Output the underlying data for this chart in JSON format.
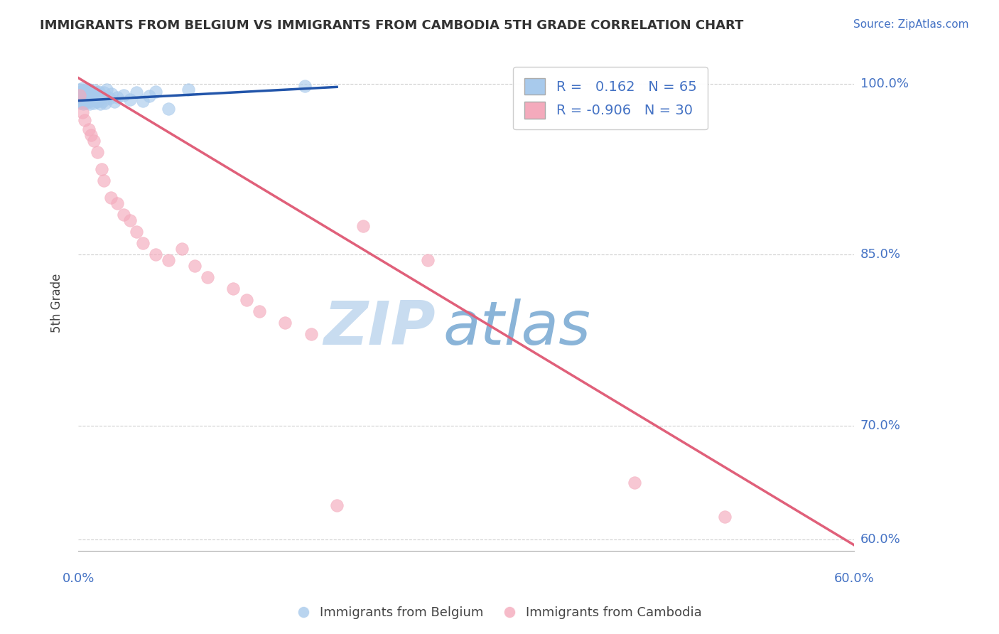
{
  "title": "IMMIGRANTS FROM BELGIUM VS IMMIGRANTS FROM CAMBODIA 5TH GRADE CORRELATION CHART",
  "source": "Source: ZipAtlas.com",
  "ylabel": "5th Grade",
  "xlim": [
    0.0,
    60.0
  ],
  "ylim": [
    59.0,
    102.5
  ],
  "yticks": [
    60.0,
    70.0,
    85.0,
    100.0
  ],
  "ytick_labels": [
    "60.0%",
    "70.0%",
    "85.0%",
    "100.0%"
  ],
  "legend_blue_r": "0.162",
  "legend_blue_n": "65",
  "legend_pink_r": "-0.906",
  "legend_pink_n": "30",
  "blue_color": "#A8CAEC",
  "pink_color": "#F4AABC",
  "blue_line_color": "#2255AA",
  "pink_line_color": "#E0607A",
  "title_color": "#333333",
  "axis_label_color": "#444444",
  "tick_color": "#4472C4",
  "watermark_zip_color": "#C8DCF0",
  "watermark_atlas_color": "#8AB4D8",
  "background_color": "#FFFFFF",
  "grid_color": "#BBBBBB",
  "blue_scatter_x": [
    0.05,
    0.08,
    0.1,
    0.12,
    0.15,
    0.18,
    0.2,
    0.22,
    0.25,
    0.28,
    0.3,
    0.32,
    0.35,
    0.38,
    0.4,
    0.42,
    0.45,
    0.48,
    0.5,
    0.52,
    0.55,
    0.58,
    0.6,
    0.62,
    0.65,
    0.68,
    0.7,
    0.75,
    0.8,
    0.85,
    0.9,
    0.95,
    1.0,
    1.05,
    1.1,
    1.15,
    1.2,
    1.25,
    1.3,
    1.35,
    1.4,
    1.45,
    1.5,
    1.55,
    1.6,
    1.65,
    1.7,
    1.8,
    1.9,
    2.0,
    2.1,
    2.2,
    2.4,
    2.6,
    2.8,
    3.0,
    3.5,
    4.0,
    4.5,
    5.0,
    5.5,
    6.0,
    7.0,
    8.5,
    17.5
  ],
  "blue_scatter_y": [
    99.2,
    98.8,
    99.5,
    98.5,
    99.0,
    98.3,
    99.1,
    98.7,
    99.3,
    98.4,
    99.6,
    98.6,
    99.2,
    98.2,
    99.4,
    98.9,
    99.0,
    98.5,
    99.1,
    98.3,
    98.8,
    99.4,
    98.7,
    99.3,
    98.5,
    99.2,
    98.6,
    99.0,
    98.4,
    99.5,
    98.2,
    99.1,
    98.8,
    99.3,
    98.6,
    99.0,
    98.3,
    99.4,
    98.7,
    99.2,
    98.5,
    99.1,
    98.4,
    98.9,
    99.3,
    98.6,
    98.2,
    99.0,
    98.5,
    99.2,
    98.3,
    99.5,
    98.7,
    99.1,
    98.4,
    98.8,
    99.0,
    98.6,
    99.2,
    98.5,
    98.9,
    99.3,
    97.8,
    99.5,
    99.8
  ],
  "pink_scatter_x": [
    0.1,
    0.3,
    0.5,
    0.8,
    1.0,
    1.2,
    1.5,
    1.8,
    2.0,
    2.5,
    3.0,
    3.5,
    4.0,
    4.5,
    5.0,
    6.0,
    7.0,
    8.0,
    9.0,
    10.0,
    12.0,
    13.0,
    14.0,
    16.0,
    18.0,
    20.0,
    22.0,
    27.0,
    43.0,
    50.0
  ],
  "pink_scatter_y": [
    99.0,
    97.5,
    96.8,
    96.0,
    95.5,
    95.0,
    94.0,
    92.5,
    91.5,
    90.0,
    89.5,
    88.5,
    88.0,
    87.0,
    86.0,
    85.0,
    84.5,
    85.5,
    84.0,
    83.0,
    82.0,
    81.0,
    80.0,
    79.0,
    78.0,
    63.0,
    87.5,
    84.5,
    65.0,
    62.0
  ],
  "blue_trend_x": [
    0.0,
    20.0
  ],
  "blue_trend_y": [
    98.5,
    99.7
  ],
  "pink_trend_x": [
    0.0,
    60.0
  ],
  "pink_trend_y": [
    100.5,
    59.5
  ]
}
